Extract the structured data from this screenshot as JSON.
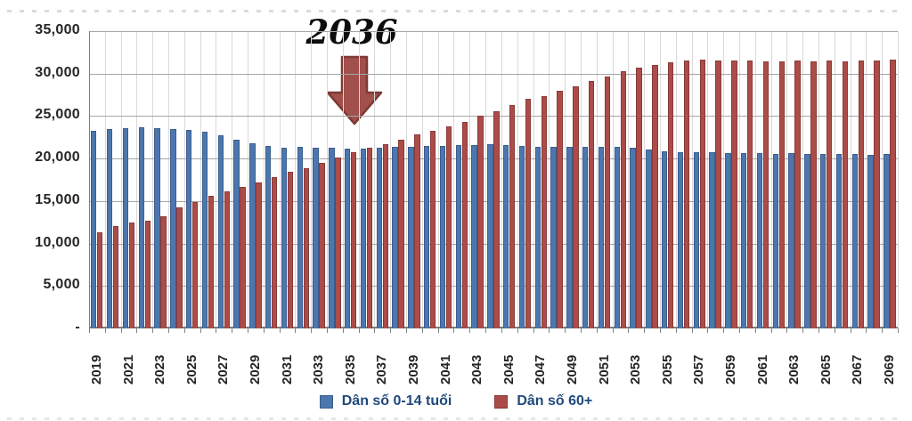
{
  "annotation": {
    "text": "2036"
  },
  "legend": {
    "items": [
      {
        "label": "Dân số 0-14 tuổi",
        "color": "#4c77ae",
        "border": "#3b5e8c"
      },
      {
        "label": "Dân số 60+",
        "color": "#ac4c49",
        "border": "#8a3a38"
      }
    ]
  },
  "colors": {
    "h_grid": "#a6a6a6",
    "v_grid": "#d9d9d9",
    "axis": "#7f7f7f",
    "arrow_fill": "#a1504c",
    "arrow_stroke": "#7e3936",
    "legend_text": "#1f497d"
  },
  "chart_data": {
    "type": "bar",
    "title": "",
    "xlabel": "",
    "ylabel": "",
    "ylim": [
      0,
      35000
    ],
    "ytick_interval": 5000,
    "ytick_labels": [
      "-",
      "5,000",
      "10,000",
      "15,000",
      "20,000",
      "25,000",
      "30,000",
      "35,000"
    ],
    "grid": true,
    "legend_position": "bottom",
    "annotation": {
      "text": "2036",
      "arrow": "down",
      "points_at_year": 2036,
      "meaning": "year when 60+ population surpasses 0-14 population"
    },
    "categories": [
      2019,
      2020,
      2021,
      2022,
      2023,
      2024,
      2025,
      2026,
      2027,
      2028,
      2029,
      2030,
      2031,
      2032,
      2033,
      2034,
      2035,
      2036,
      2037,
      2038,
      2039,
      2040,
      2041,
      2042,
      2043,
      2044,
      2045,
      2046,
      2047,
      2048,
      2049,
      2050,
      2051,
      2052,
      2053,
      2054,
      2055,
      2056,
      2057,
      2058,
      2059,
      2060,
      2061,
      2062,
      2063,
      2064,
      2065,
      2066,
      2067,
      2068,
      2069
    ],
    "xtick_labels": [
      "2019",
      "2021",
      "2023",
      "2025",
      "2027",
      "2029",
      "2031",
      "2033",
      "2035",
      "2037",
      "2039",
      "2041",
      "2043",
      "2045",
      "2047",
      "2049",
      "2051",
      "2053",
      "2055",
      "2057",
      "2059",
      "2061",
      "2063",
      "2065",
      "2067",
      "2069"
    ],
    "series": [
      {
        "name": "Dân số 0-14 tuổi",
        "color": "#4c77ae",
        "border": "#3b5e8c",
        "values": [
          23300,
          23450,
          23600,
          23700,
          23550,
          23450,
          23350,
          23200,
          22700,
          22200,
          21800,
          21500,
          21300,
          21400,
          21300,
          21300,
          21200,
          21200,
          21300,
          21400,
          21400,
          21500,
          21500,
          21600,
          21600,
          21700,
          21600,
          21500,
          21400,
          21400,
          21400,
          21400,
          21400,
          21400,
          21300,
          21100,
          20900,
          20800,
          20700,
          20700,
          20600,
          20600,
          20600,
          20500,
          20600,
          20500,
          20500,
          20500,
          20500,
          20400,
          20500
        ]
      },
      {
        "name": "Dân số 60+",
        "color": "#ac4c49",
        "border": "#8a3a38",
        "values": [
          11300,
          12000,
          12500,
          12700,
          13200,
          14200,
          14900,
          15600,
          16100,
          16700,
          17200,
          17800,
          18400,
          18900,
          19500,
          20100,
          20700,
          21300,
          21700,
          22200,
          22800,
          23300,
          23800,
          24300,
          25000,
          25600,
          26300,
          27000,
          27400,
          28000,
          28500,
          29100,
          29700,
          30300,
          30700,
          31000,
          31300,
          31500,
          31600,
          31500,
          31500,
          31500,
          31400,
          31400,
          31500,
          31400,
          31500,
          31400,
          31500,
          31500,
          31600
        ]
      }
    ]
  }
}
